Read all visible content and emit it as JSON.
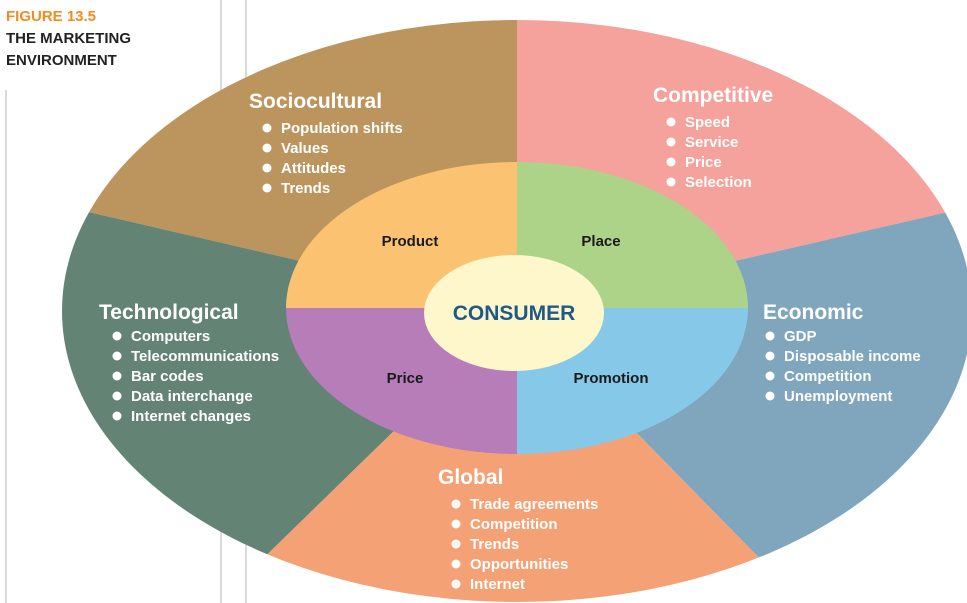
{
  "figure": {
    "number": "FIGURE 13.5",
    "title_line1": "THE MARKETING",
    "title_line2": "ENVIRONMENT"
  },
  "colors": {
    "sociocultural": "#BC955E",
    "competitive": "#F5A19C",
    "technological": "#638475",
    "economic": "#7FA6BC",
    "global": "#F5A176",
    "product": "#FBC371",
    "place": "#ADD388",
    "price": "#B67DB8",
    "promotion": "#85C8E8",
    "consumer": "#FDF7CB",
    "consumer_text": "#1F5A87",
    "figure_number": "#F58A1F"
  },
  "sectors": {
    "sociocultural": {
      "title": "Sociocultural",
      "items": [
        "Population shifts",
        "Values",
        "Attitudes",
        "Trends"
      ]
    },
    "competitive": {
      "title": "Competitive",
      "items": [
        "Speed",
        "Service",
        "Price",
        "Selection"
      ]
    },
    "technological": {
      "title": "Technological",
      "items": [
        "Computers",
        "Telecommunications",
        "Bar codes",
        "Data interchange",
        "Internet changes"
      ]
    },
    "economic": {
      "title": "Economic",
      "items": [
        "GDP",
        "Disposable income",
        "Competition",
        "Unemployment"
      ]
    },
    "global": {
      "title": "Global",
      "items": [
        "Trade agreements",
        "Competition",
        "Trends",
        "Opportunities",
        "Internet"
      ]
    }
  },
  "marketing_mix": {
    "product": "Product",
    "place": "Place",
    "price": "Price",
    "promotion": "Promotion"
  },
  "center": {
    "label": "CONSUMER"
  }
}
